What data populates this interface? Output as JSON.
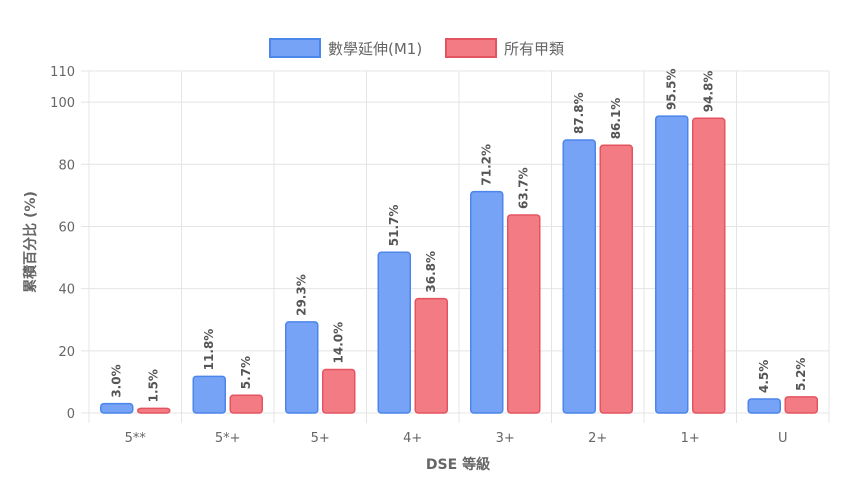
{
  "chart_data": {
    "type": "bar",
    "categories": [
      "5**",
      "5*+",
      "5+",
      "4+",
      "3+",
      "2+",
      "1+",
      "U"
    ],
    "series": [
      {
        "name": "數學延伸(M1)",
        "values": [
          3.0,
          11.8,
          29.3,
          51.7,
          71.2,
          87.8,
          95.5,
          4.5
        ],
        "labels": [
          "3.0%",
          "11.8%",
          "29.3%",
          "51.7%",
          "71.2%",
          "87.8%",
          "95.5%",
          "4.5%"
        ],
        "fill": "#76a3f6",
        "stroke": "#4c86ea"
      },
      {
        "name": "所有甲類",
        "values": [
          1.5,
          5.7,
          14.0,
          36.8,
          63.7,
          86.1,
          94.8,
          5.2
        ],
        "labels": [
          "1.5%",
          "5.7%",
          "14.0%",
          "36.8%",
          "63.7%",
          "86.1%",
          "94.8%",
          "5.2%"
        ],
        "fill": "#f37c84",
        "stroke": "#e45460"
      }
    ],
    "xlabel": "DSE 等級",
    "ylabel": "累積百分比 (%)",
    "ylim": [
      0,
      110
    ],
    "yticks": [
      "0",
      "20",
      "40",
      "60",
      "80",
      "100",
      "110"
    ],
    "grid": true,
    "legend_position": "top"
  }
}
